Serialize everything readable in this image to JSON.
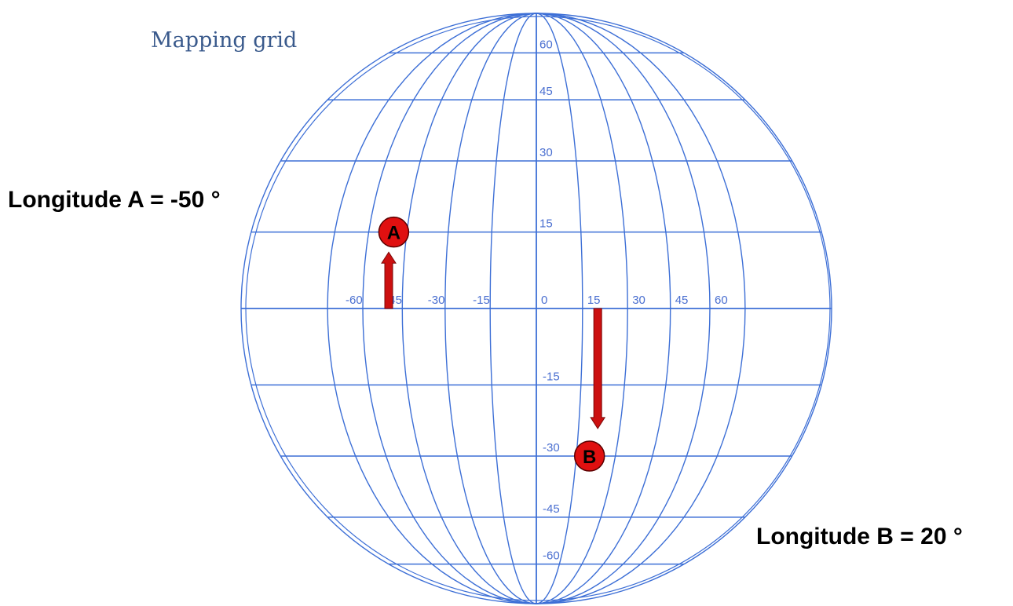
{
  "title": "Mapping grid",
  "grid": {
    "line_color": "#3d6fd6",
    "meridians_deg": [
      -75,
      -60,
      -45,
      -30,
      -15,
      0,
      15,
      30,
      45,
      60,
      75
    ],
    "parallels_deg": [
      -60,
      -45,
      -30,
      -15,
      0,
      15,
      30,
      45,
      60
    ],
    "longitude_tick_labels": [
      {
        "deg": -60,
        "text": "-60"
      },
      {
        "deg": -45,
        "text": "-45"
      },
      {
        "deg": -30,
        "text": "-30"
      },
      {
        "deg": -15,
        "text": "-15"
      },
      {
        "deg": 0,
        "text": "0"
      },
      {
        "deg": 15,
        "text": "15"
      },
      {
        "deg": 30,
        "text": "30"
      },
      {
        "deg": 45,
        "text": "45"
      },
      {
        "deg": 60,
        "text": "60"
      }
    ],
    "latitude_tick_labels": [
      {
        "deg": 60,
        "text": "60"
      },
      {
        "deg": 45,
        "text": "45"
      },
      {
        "deg": 30,
        "text": "30"
      },
      {
        "deg": 15,
        "text": "15"
      },
      {
        "deg": -15,
        "text": "-15"
      },
      {
        "deg": -30,
        "text": "-30"
      },
      {
        "deg": -45,
        "text": "-45"
      },
      {
        "deg": -60,
        "text": "-60"
      }
    ]
  },
  "markers": [
    {
      "label": "A",
      "longitude": -50,
      "latitude": 15,
      "color": "#e01010"
    },
    {
      "label": "B",
      "longitude": 20,
      "latitude": -30,
      "color": "#e01010"
    }
  ],
  "arrows": [
    {
      "name": "arrow-a",
      "longitude": -50,
      "from_latitude": 0,
      "to_latitude": 11,
      "color": "#cc1010"
    },
    {
      "name": "arrow-b",
      "longitude": 20,
      "from_latitude": 0,
      "to_latitude": -24,
      "color": "#cc1010"
    }
  ],
  "callouts": {
    "a": "Longitude A = -50 °",
    "b": "Longitude B = 20 °"
  }
}
